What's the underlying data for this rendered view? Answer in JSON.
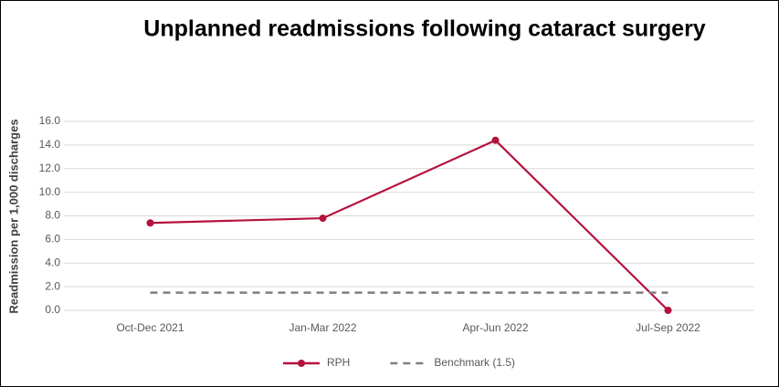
{
  "chart_data": {
    "type": "line",
    "title": "Unplanned readmissions following cataract surgery",
    "y_label": "Readmission per 1,000 discharges",
    "categories": [
      "Oct-Dec 2021",
      "Jan-Mar 2022",
      "Apr-Jun 2022",
      "Jul-Sep 2022"
    ],
    "series": [
      {
        "name": "RPH",
        "color": "#b5123e",
        "values": [
          7.4,
          7.8,
          14.4,
          0.0
        ],
        "markers": true,
        "dashed": false
      },
      {
        "name": "Benchmark (1.5)",
        "color": "#7f7f7f",
        "values": [
          1.5,
          1.5,
          1.5,
          1.5
        ],
        "markers": false,
        "dashed": true
      }
    ],
    "ylim": [
      0,
      16
    ],
    "yticks": [
      {
        "value": 0,
        "label": "0.0"
      },
      {
        "value": 2,
        "label": "2.0"
      },
      {
        "value": 4,
        "label": "4.0"
      },
      {
        "value": 6,
        "label": "6.0"
      },
      {
        "value": 8,
        "label": "8.0"
      },
      {
        "value": 10,
        "label": "10.0"
      },
      {
        "value": 12,
        "label": "12.0"
      },
      {
        "value": 14,
        "label": "14.0"
      },
      {
        "value": 16,
        "label": "16.0"
      }
    ],
    "grid": true,
    "legend": "bottom"
  }
}
